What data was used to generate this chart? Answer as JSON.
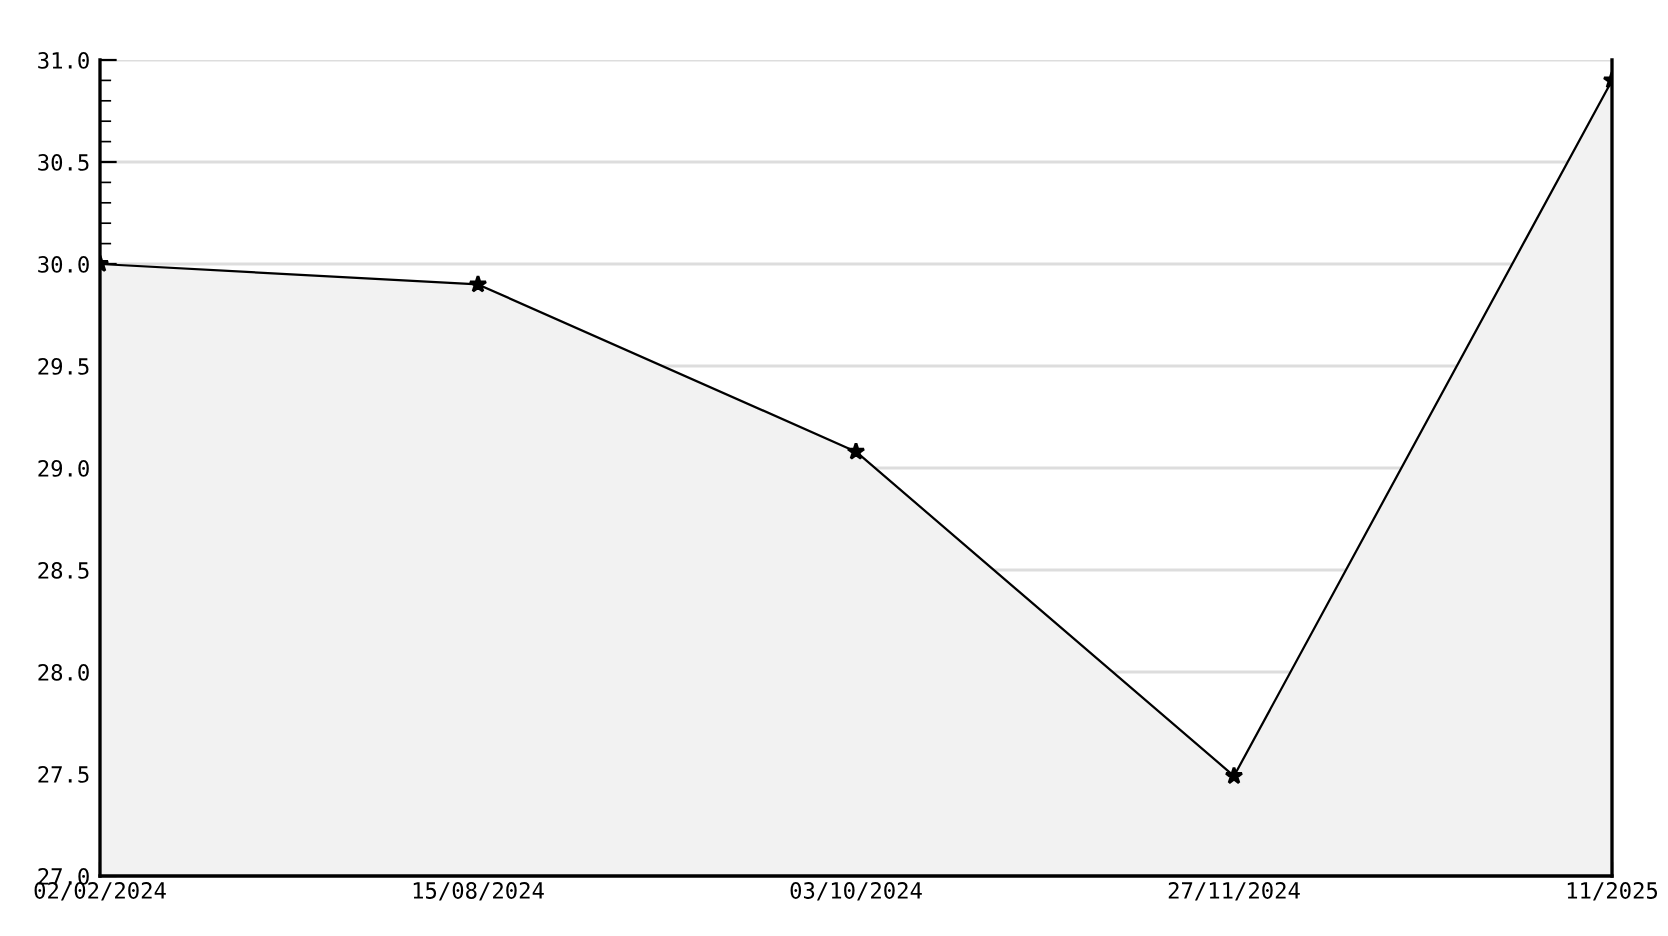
{
  "chart_data": {
    "type": "area",
    "categories": [
      "02/02/2024",
      "15/08/2024",
      "03/10/2024",
      "27/11/2024",
      "11/2025"
    ],
    "series": [
      {
        "color": "#000000",
        "values": [
          30.0,
          29.9,
          29.08,
          27.49,
          30.9
        ]
      }
    ],
    "ylim": [
      27.0,
      31.0
    ],
    "yticks": [
      {
        "value": 27,
        "label": "27.0"
      },
      {
        "value": 27.5,
        "label": "27.5"
      },
      {
        "value": 28,
        "label": "28.0"
      },
      {
        "value": 28.5,
        "label": "28.5"
      },
      {
        "value": 29,
        "label": "29.0"
      },
      {
        "value": 29.5,
        "label": "29.5"
      },
      {
        "value": 30,
        "label": "30.0"
      },
      {
        "value": 30.5,
        "label": "30.5"
      },
      {
        "value": 31,
        "label": "31.0"
      }
    ],
    "grid": "y",
    "marker": "star",
    "line_style": "solid"
  }
}
